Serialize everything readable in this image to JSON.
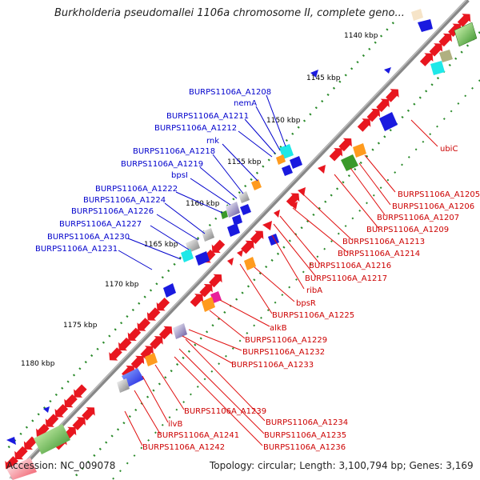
{
  "title": "Burkholderia pseudomallei 1106a chromosome II, complete geno...",
  "footer": {
    "accession": "Accession: NC_009078",
    "topology": "Topology: circular; Length: 3,100,794 bp; Genes: 3,169"
  },
  "kbp_ticks": [
    "1140 kbp",
    "1145 kbp",
    "1150 kbp",
    "1155 kbp",
    "1160 kbp",
    "1165 kbp",
    "1170 kbp",
    "1175 kbp",
    "1180 kbp"
  ],
  "blue_labels": [
    "BURPS1106A_A1208",
    "nemA",
    "BURPS1106A_A1211",
    "BURPS1106A_A1212",
    "rnk",
    "BURPS1106A_A1218",
    "BURPS1106A_A1219",
    "bpsI",
    "BURPS1106A_A1222",
    "BURPS1106A_A1224",
    "BURPS1106A_A1226",
    "BURPS1106A_A1227",
    "BURPS1106A_A1230",
    "BURPS1106A_A1231"
  ],
  "red_labels": [
    "ubiC",
    "BURPS1106A_A1205",
    "BURPS1106A_A1206",
    "BURPS1106A_A1207",
    "BURPS1106A_A1209",
    "BURPS1106A_A1213",
    "BURPS1106A_A1214",
    "BURPS1106A_A1216",
    "BURPS1106A_A1217",
    "ribA",
    "bpsR",
    "BURPS1106A_A1225",
    "alkB",
    "BURPS1106A_A1229",
    "BURPS1106A_A1232",
    "BURPS1106A_A1233",
    "BURPS1106A_A1239",
    "BURPS1106A_A1234",
    "ilvB",
    "BURPS1106A_A1235",
    "BURPS1106A_A1241",
    "BURPS1106A_A1236",
    "BURPS1106A_A1242"
  ],
  "colors": {
    "backbone": "#888888",
    "cds": "#e8161f",
    "rrna_blue": "#1a1adf",
    "cyan": "#1ee8e8",
    "orange": "#ff9b1e",
    "green": "#3a9a2a",
    "gray": "#a0a0a0",
    "purple": "#7a6fa8",
    "magenta": "#e8209a",
    "tick_green": "#2a8a2a",
    "label_blue": "#0000cc",
    "label_red": "#cc0000"
  }
}
